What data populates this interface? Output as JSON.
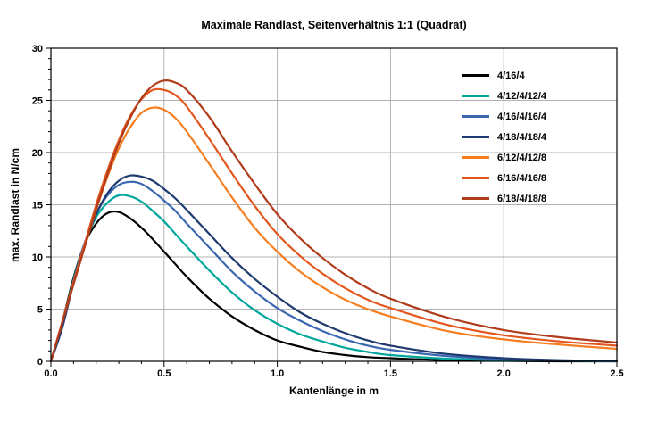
{
  "title": "Maximale Randlast, Seitenverhältnis 1:1 (Quadrat)",
  "axes": {
    "xlabel": "Kantenlänge in m",
    "ylabel": "max. Randlast in N/cm"
  },
  "colors": {
    "grid": "#b3b3b3",
    "frame": "#000000"
  },
  "chart_data": {
    "type": "line",
    "title": "Maximale Randlast, Seitenverhältnis 1:1 (Quadrat)",
    "xlabel": "Kantenlänge in m",
    "ylabel": "max. Randlast in N/cm",
    "xlim": [
      0,
      2.5
    ],
    "ylim": [
      0,
      30
    ],
    "xticks": [
      0,
      0.5,
      1.0,
      1.5,
      2.0,
      2.5
    ],
    "xtick_labels": [
      "0.0",
      "0.5",
      "1.0",
      "1.5",
      "2.0",
      "2.5"
    ],
    "yticks": [
      0,
      5,
      10,
      15,
      20,
      25,
      30
    ],
    "ytick_labels": [
      "0",
      "5",
      "10",
      "15",
      "20",
      "25",
      "30"
    ],
    "grid": true,
    "legend_position": "upper right",
    "x": [
      0,
      0.05,
      0.1,
      0.15,
      0.2,
      0.25,
      0.3,
      0.35,
      0.4,
      0.45,
      0.5,
      0.55,
      0.6,
      0.7,
      0.8,
      0.9,
      1.0,
      1.1,
      1.2,
      1.3,
      1.4,
      1.5,
      1.75,
      2.0,
      2.25,
      2.5
    ],
    "series": [
      {
        "name": "4/16/4",
        "color": "#000000",
        "values": [
          0,
          3.7,
          8.0,
          11.3,
          13.2,
          14.2,
          14.3,
          13.7,
          12.8,
          11.7,
          10.5,
          9.3,
          8.1,
          6.0,
          4.3,
          3.0,
          2.0,
          1.4,
          0.9,
          0.6,
          0.4,
          0.3,
          0.1,
          0.05,
          0,
          0
        ]
      },
      {
        "name": "4/12/4/12/4",
        "color": "#00A69C",
        "values": [
          0,
          3.5,
          7.8,
          11.3,
          13.8,
          15.2,
          15.9,
          15.8,
          15.3,
          14.4,
          13.4,
          12.2,
          11.0,
          8.7,
          6.6,
          4.9,
          3.6,
          2.6,
          1.9,
          1.3,
          0.9,
          0.6,
          0.25,
          0.1,
          0.05,
          0
        ]
      },
      {
        "name": "4/16/4/16/4",
        "color": "#3A67B1",
        "values": [
          0,
          3.4,
          7.7,
          11.4,
          14.1,
          15.9,
          16.9,
          17.2,
          17.0,
          16.3,
          15.4,
          14.4,
          13.2,
          10.9,
          8.6,
          6.7,
          5.1,
          3.9,
          2.9,
          2.1,
          1.5,
          1.1,
          0.5,
          0.2,
          0.1,
          0
        ]
      },
      {
        "name": "4/18/4/18/4",
        "color": "#1F3A6E",
        "values": [
          0,
          3.2,
          7.5,
          11.2,
          14.1,
          16.1,
          17.3,
          17.8,
          17.7,
          17.3,
          16.5,
          15.6,
          14.5,
          12.2,
          9.9,
          7.9,
          6.2,
          4.7,
          3.6,
          2.7,
          2.0,
          1.5,
          0.7,
          0.3,
          0.1,
          0.05
        ]
      },
      {
        "name": "6/12/4/12/8",
        "color": "#F57E20",
        "values": [
          0,
          3.7,
          7.4,
          11.0,
          14.5,
          17.7,
          20.4,
          22.4,
          23.8,
          24.3,
          24.1,
          23.3,
          22.0,
          18.9,
          15.7,
          12.8,
          10.5,
          8.6,
          7.1,
          5.9,
          5.0,
          4.3,
          2.9,
          2.1,
          1.6,
          1.2
        ]
      },
      {
        "name": "6/16/4/16/8",
        "color": "#E3571E",
        "values": [
          0,
          3.8,
          7.6,
          11.3,
          15.0,
          18.3,
          21.2,
          23.5,
          25.1,
          26.0,
          26.0,
          25.5,
          24.4,
          21.3,
          18.0,
          14.9,
          12.2,
          10.1,
          8.4,
          7.0,
          5.9,
          5.1,
          3.5,
          2.5,
          1.9,
          1.5
        ]
      },
      {
        "name": "6/18/4/18/8",
        "color": "#B13C1B",
        "values": [
          0,
          3.7,
          7.4,
          11.0,
          14.6,
          17.9,
          20.9,
          23.3,
          25.2,
          26.4,
          26.9,
          26.7,
          26.0,
          23.4,
          20.1,
          17.0,
          14.1,
          11.8,
          9.9,
          8.3,
          7.0,
          6.0,
          4.2,
          3.0,
          2.3,
          1.8
        ]
      }
    ]
  }
}
